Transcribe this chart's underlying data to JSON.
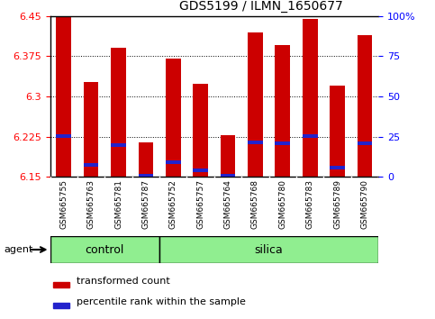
{
  "title": "GDS5199 / ILMN_1650677",
  "samples": [
    "GSM665755",
    "GSM665763",
    "GSM665781",
    "GSM665787",
    "GSM665752",
    "GSM665757",
    "GSM665764",
    "GSM665768",
    "GSM665780",
    "GSM665783",
    "GSM665789",
    "GSM665790"
  ],
  "n_control": 4,
  "n_silica": 8,
  "transformed_count": [
    6.447,
    6.327,
    6.39,
    6.215,
    6.37,
    6.323,
    6.228,
    6.42,
    6.395,
    6.444,
    6.32,
    6.415
  ],
  "percentile_rank": [
    6.226,
    6.172,
    6.21,
    6.152,
    6.177,
    6.163,
    6.153,
    6.215,
    6.213,
    6.226,
    6.167,
    6.213
  ],
  "ymin": 6.15,
  "ymax": 6.45,
  "yticks_left": [
    6.15,
    6.225,
    6.3,
    6.375,
    6.45
  ],
  "yticks_right_pct": [
    0,
    25,
    50,
    75,
    100
  ],
  "bar_color": "#cc0000",
  "blue_color": "#2222cc",
  "tick_bg_color": "#cccccc",
  "control_color": "#90ee90",
  "silica_color": "#90ee90",
  "legend_red": "transformed count",
  "legend_blue": "percentile rank within the sample",
  "agent_label": "agent",
  "group_label_control": "control",
  "group_label_silica": "silica"
}
